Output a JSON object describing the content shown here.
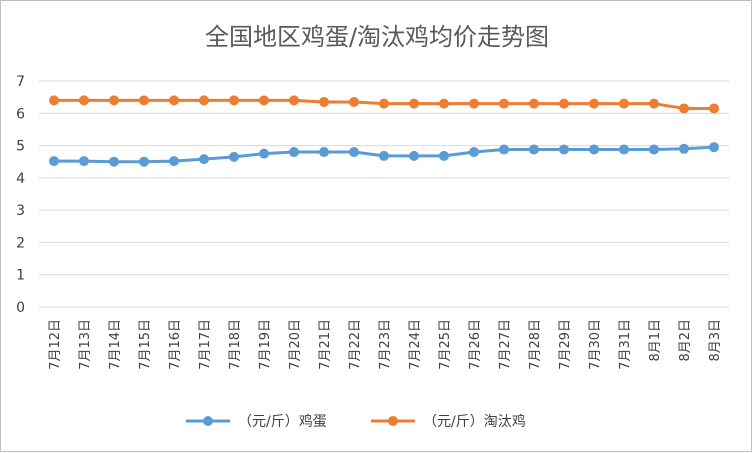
{
  "chart_data": {
    "type": "line",
    "title": "全国地区鸡蛋/淘汰鸡均价走势图",
    "xlabel": "",
    "ylabel": "",
    "ylim": [
      0,
      7
    ],
    "yticks": [
      0,
      1,
      2,
      3,
      4,
      5,
      6,
      7
    ],
    "grid": true,
    "legend_position": "bottom",
    "categories": [
      "7月12日",
      "7月13日",
      "7月14日",
      "7月15日",
      "7月16日",
      "7月17日",
      "7月18日",
      "7月19日",
      "7月20日",
      "7月21日",
      "7月22日",
      "7月23日",
      "7月24日",
      "7月25日",
      "7月26日",
      "7月27日",
      "7月28日",
      "7月29日",
      "7月30日",
      "7月31日",
      "8月1日",
      "8月2日",
      "8月3日"
    ],
    "series": [
      {
        "name": "（元/斤）鸡蛋",
        "color": "#5b9bd5",
        "values": [
          4.52,
          4.52,
          4.5,
          4.5,
          4.52,
          4.58,
          4.65,
          4.75,
          4.8,
          4.8,
          4.8,
          4.68,
          4.68,
          4.68,
          4.8,
          4.88,
          4.88,
          4.88,
          4.88,
          4.88,
          4.88,
          4.9,
          4.95
        ]
      },
      {
        "name": "（元/斤）淘汰鸡",
        "color": "#ed7d31",
        "values": [
          6.4,
          6.4,
          6.4,
          6.4,
          6.4,
          6.4,
          6.4,
          6.4,
          6.4,
          6.35,
          6.35,
          6.3,
          6.3,
          6.3,
          6.3,
          6.3,
          6.3,
          6.3,
          6.3,
          6.3,
          6.3,
          6.15,
          6.15
        ]
      }
    ]
  }
}
